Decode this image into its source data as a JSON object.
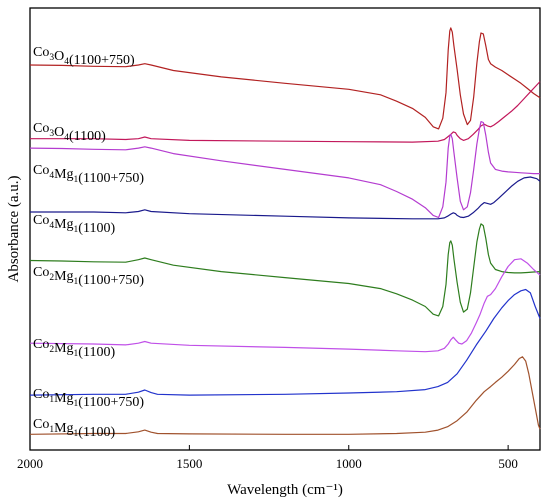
{
  "chart_data": {
    "type": "line",
    "xlabel": "Wavelength (cm⁻¹)",
    "ylabel": "Absorbance (a.u.)",
    "xlim": [
      2000,
      400
    ],
    "x_reversed": true,
    "grid": false,
    "y_ticks_shown": false,
    "x_ticks": [
      {
        "value": 2000,
        "label": "2000"
      },
      {
        "value": 1500,
        "label": "1500"
      },
      {
        "value": 1000,
        "label": "1000"
      },
      {
        "value": 500,
        "label": "500"
      }
    ],
    "series": [
      {
        "name": "Co3O4(1100+750)",
        "label_parts": [
          [
            "Co",
            false
          ],
          [
            "3",
            true
          ],
          [
            "O",
            false
          ],
          [
            "4",
            true
          ],
          [
            "(1100+750)",
            false
          ]
        ],
        "color": "#b22222",
        "x": [
          2000,
          1900,
          1800,
          1700,
          1660,
          1640,
          1620,
          1550,
          1400,
          1200,
          1000,
          900,
          850,
          800,
          760,
          735,
          718,
          705,
          695,
          688,
          683,
          680,
          675,
          670,
          660,
          650,
          640,
          628,
          618,
          608,
          598,
          590,
          585,
          578,
          570,
          562,
          555,
          540,
          520,
          500,
          480,
          460,
          440,
          420,
          400
        ],
        "y": [
          0.885,
          0.884,
          0.882,
          0.881,
          0.885,
          0.888,
          0.885,
          0.872,
          0.857,
          0.842,
          0.828,
          0.815,
          0.8,
          0.783,
          0.762,
          0.74,
          0.735,
          0.76,
          0.82,
          0.92,
          0.965,
          0.972,
          0.962,
          0.93,
          0.875,
          0.815,
          0.77,
          0.745,
          0.755,
          0.81,
          0.89,
          0.94,
          0.96,
          0.958,
          0.93,
          0.898,
          0.888,
          0.88,
          0.872,
          0.862,
          0.852,
          0.842,
          0.83,
          0.818,
          0.808
        ]
      },
      {
        "name": "Co3O4(1100)",
        "label_parts": [
          [
            "Co",
            false
          ],
          [
            "3",
            true
          ],
          [
            "O",
            false
          ],
          [
            "4",
            true
          ],
          [
            "(1100)",
            false
          ]
        ],
        "color": "#c2185b",
        "x": [
          2000,
          1800,
          1700,
          1660,
          1640,
          1620,
          1500,
          1200,
          1000,
          800,
          720,
          700,
          690,
          680,
          672,
          665,
          660,
          650,
          640,
          625,
          610,
          595,
          585,
          575,
          565,
          555,
          545,
          530,
          510,
          490,
          470,
          450,
          430,
          410,
          400
        ],
        "y": [
          0.712,
          0.712,
          0.71,
          0.712,
          0.716,
          0.712,
          0.708,
          0.706,
          0.705,
          0.704,
          0.706,
          0.71,
          0.716,
          0.722,
          0.728,
          0.726,
          0.72,
          0.712,
          0.708,
          0.712,
          0.722,
          0.733,
          0.742,
          0.746,
          0.742,
          0.74,
          0.744,
          0.752,
          0.764,
          0.776,
          0.79,
          0.806,
          0.822,
          0.838,
          0.846
        ]
      },
      {
        "name": "Co4Mg1(1100+750)",
        "label_parts": [
          [
            "Co",
            false
          ],
          [
            "4",
            true
          ],
          [
            "Mg",
            false
          ],
          [
            "1",
            true
          ],
          [
            "(1100+750)",
            false
          ]
        ],
        "color": "#b43cd0",
        "x": [
          2000,
          1900,
          1800,
          1700,
          1660,
          1640,
          1620,
          1550,
          1400,
          1200,
          1000,
          900,
          850,
          800,
          760,
          735,
          718,
          705,
          695,
          688,
          683,
          680,
          675,
          670,
          660,
          650,
          640,
          628,
          618,
          608,
          598,
          590,
          585,
          578,
          570,
          562,
          555,
          540,
          520,
          500,
          480,
          460,
          440,
          420,
          400
        ],
        "y": [
          0.69,
          0.689,
          0.687,
          0.686,
          0.69,
          0.693,
          0.69,
          0.677,
          0.66,
          0.64,
          0.62,
          0.604,
          0.588,
          0.57,
          0.55,
          0.532,
          0.527,
          0.552,
          0.61,
          0.69,
          0.718,
          0.722,
          0.712,
          0.68,
          0.62,
          0.565,
          0.545,
          0.552,
          0.585,
          0.64,
          0.7,
          0.735,
          0.752,
          0.75,
          0.72,
          0.68,
          0.655,
          0.64,
          0.636,
          0.634,
          0.633,
          0.632,
          0.631,
          0.63,
          0.63
        ]
      },
      {
        "name": "Co4Mg1(1100)",
        "label_parts": [
          [
            "Co",
            false
          ],
          [
            "4",
            true
          ],
          [
            "Mg",
            false
          ],
          [
            "1",
            true
          ],
          [
            "(1100)",
            false
          ]
        ],
        "color": "#1a1a8c",
        "x": [
          2000,
          1800,
          1700,
          1660,
          1640,
          1620,
          1500,
          1200,
          1000,
          800,
          720,
          700,
          690,
          680,
          672,
          665,
          660,
          650,
          640,
          625,
          610,
          595,
          585,
          575,
          565,
          555,
          545,
          530,
          510,
          490,
          470,
          450,
          430,
          410,
          400
        ],
        "y": [
          0.54,
          0.54,
          0.538,
          0.541,
          0.545,
          0.541,
          0.536,
          0.53,
          0.526,
          0.524,
          0.524,
          0.526,
          0.53,
          0.535,
          0.538,
          0.536,
          0.532,
          0.528,
          0.527,
          0.53,
          0.538,
          0.548,
          0.556,
          0.562,
          0.56,
          0.558,
          0.562,
          0.572,
          0.586,
          0.6,
          0.612,
          0.62,
          0.622,
          0.618,
          0.612
        ]
      },
      {
        "name": "Co2Mg1(1100+750)",
        "label_parts": [
          [
            "Co",
            false
          ],
          [
            "2",
            true
          ],
          [
            "Mg",
            false
          ],
          [
            "1",
            true
          ],
          [
            "(1100+750)",
            false
          ]
        ],
        "color": "#2e7d1e",
        "x": [
          2000,
          1900,
          1800,
          1700,
          1660,
          1640,
          1620,
          1550,
          1400,
          1200,
          1000,
          900,
          850,
          800,
          760,
          735,
          718,
          705,
          695,
          688,
          683,
          680,
          675,
          670,
          660,
          650,
          640,
          628,
          618,
          608,
          598,
          590,
          585,
          578,
          570,
          562,
          555,
          540,
          520,
          500,
          480,
          460,
          440,
          420,
          400
        ],
        "y": [
          0.426,
          0.425,
          0.423,
          0.422,
          0.428,
          0.432,
          0.428,
          0.415,
          0.4,
          0.386,
          0.372,
          0.36,
          0.348,
          0.333,
          0.318,
          0.3,
          0.296,
          0.318,
          0.37,
          0.44,
          0.468,
          0.472,
          0.462,
          0.43,
          0.375,
          0.328,
          0.305,
          0.312,
          0.35,
          0.41,
          0.47,
          0.5,
          0.512,
          0.508,
          0.478,
          0.44,
          0.42,
          0.405,
          0.4,
          0.398,
          0.397,
          0.397,
          0.398,
          0.399,
          0.4
        ]
      },
      {
        "name": "Co2Mg1(1100)",
        "label_parts": [
          [
            "Co",
            false
          ],
          [
            "2",
            true
          ],
          [
            "Mg",
            false
          ],
          [
            "1",
            true
          ],
          [
            "(1100)",
            false
          ]
        ],
        "color": "#c050e8",
        "x": [
          2000,
          1800,
          1700,
          1660,
          1640,
          1620,
          1500,
          1200,
          1000,
          850,
          760,
          720,
          700,
          688,
          680,
          672,
          665,
          655,
          645,
          630,
          615,
          600,
          588,
          575,
          565,
          555,
          540,
          520,
          500,
          480,
          460,
          440,
          420,
          405,
          400
        ],
        "y": [
          0.232,
          0.23,
          0.228,
          0.232,
          0.236,
          0.232,
          0.227,
          0.222,
          0.218,
          0.214,
          0.212,
          0.214,
          0.22,
          0.23,
          0.24,
          0.246,
          0.24,
          0.232,
          0.23,
          0.238,
          0.256,
          0.28,
          0.3,
          0.326,
          0.342,
          0.346,
          0.36,
          0.388,
          0.412,
          0.428,
          0.43,
          0.42,
          0.405,
          0.395,
          0.392
        ]
      },
      {
        "name": "Co1Mg1(1100+750)",
        "label_parts": [
          [
            "Co",
            false
          ],
          [
            "1",
            true
          ],
          [
            "Mg",
            false
          ],
          [
            "1",
            true
          ],
          [
            "(1100+750)",
            false
          ]
        ],
        "color": "#2233cc",
        "x": [
          2000,
          1800,
          1700,
          1660,
          1640,
          1620,
          1600,
          1500,
          1200,
          1000,
          850,
          760,
          720,
          690,
          660,
          630,
          600,
          570,
          545,
          520,
          500,
          480,
          460,
          445,
          430,
          415,
          400
        ],
        "y": [
          0.11,
          0.112,
          0.112,
          0.117,
          0.122,
          0.116,
          0.112,
          0.11,
          0.112,
          0.115,
          0.118,
          0.123,
          0.13,
          0.14,
          0.16,
          0.192,
          0.228,
          0.26,
          0.29,
          0.315,
          0.332,
          0.346,
          0.355,
          0.358,
          0.35,
          0.318,
          0.29
        ]
      },
      {
        "name": "Co1Mg1(1100)",
        "label_parts": [
          [
            "Co",
            false
          ],
          [
            "1",
            true
          ],
          [
            "Mg",
            false
          ],
          [
            "1",
            true
          ],
          [
            "(1100)",
            false
          ]
        ],
        "color": "#a0522d",
        "x": [
          2000,
          1800,
          1700,
          1660,
          1640,
          1620,
          1600,
          1500,
          1200,
          1000,
          850,
          760,
          720,
          690,
          660,
          630,
          600,
          575,
          555,
          540,
          520,
          500,
          480,
          465,
          455,
          445,
          435,
          425,
          415,
          405,
          400
        ],
        "y": [
          0.018,
          0.02,
          0.02,
          0.024,
          0.028,
          0.023,
          0.02,
          0.019,
          0.018,
          0.018,
          0.02,
          0.023,
          0.028,
          0.036,
          0.05,
          0.07,
          0.098,
          0.118,
          0.13,
          0.14,
          0.152,
          0.166,
          0.182,
          0.196,
          0.2,
          0.19,
          0.16,
          0.12,
          0.08,
          0.04,
          0.03
        ]
      }
    ]
  }
}
